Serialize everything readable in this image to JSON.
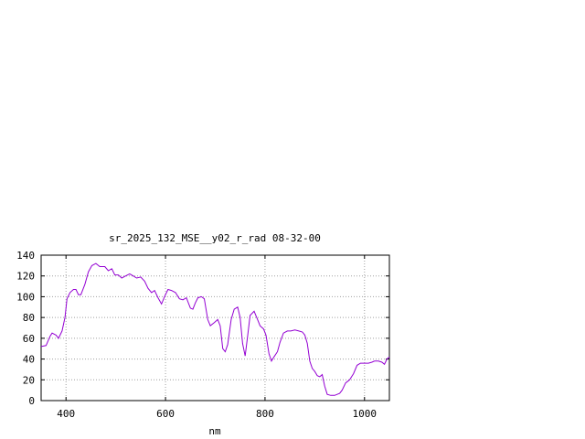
{
  "chart_data": {
    "type": "line",
    "title": "sr_2025_132_MSE__y02_r_rad 08-32-00",
    "xlabel": "nm",
    "ylabel": "",
    "xlim": [
      350,
      1050
    ],
    "ylim": [
      0,
      140
    ],
    "x_ticks": [
      400,
      600,
      800,
      1000
    ],
    "y_ticks": [
      0,
      20,
      40,
      60,
      80,
      100,
      120,
      140
    ],
    "grid": true,
    "legend": "none",
    "series": [
      {
        "color": "#9400d3",
        "points": [
          [
            350,
            52
          ],
          [
            360,
            53
          ],
          [
            368,
            62
          ],
          [
            372,
            65
          ],
          [
            380,
            63
          ],
          [
            385,
            60
          ],
          [
            392,
            67
          ],
          [
            398,
            80
          ],
          [
            402,
            98
          ],
          [
            408,
            104
          ],
          [
            415,
            107
          ],
          [
            420,
            107
          ],
          [
            425,
            102
          ],
          [
            430,
            102
          ],
          [
            438,
            112
          ],
          [
            445,
            124
          ],
          [
            452,
            130
          ],
          [
            460,
            132
          ],
          [
            468,
            129
          ],
          [
            478,
            129
          ],
          [
            485,
            125
          ],
          [
            492,
            127
          ],
          [
            498,
            121
          ],
          [
            505,
            121
          ],
          [
            512,
            118
          ],
          [
            520,
            120
          ],
          [
            528,
            122
          ],
          [
            535,
            120
          ],
          [
            542,
            118
          ],
          [
            550,
            119
          ],
          [
            558,
            115
          ],
          [
            565,
            108
          ],
          [
            572,
            104
          ],
          [
            578,
            106
          ],
          [
            585,
            99
          ],
          [
            592,
            93
          ],
          [
            598,
            100
          ],
          [
            605,
            107
          ],
          [
            612,
            106
          ],
          [
            620,
            104
          ],
          [
            628,
            98
          ],
          [
            635,
            97
          ],
          [
            642,
            99
          ],
          [
            650,
            89
          ],
          [
            655,
            88
          ],
          [
            660,
            94
          ],
          [
            665,
            99
          ],
          [
            672,
            100
          ],
          [
            678,
            98
          ],
          [
            685,
            78
          ],
          [
            690,
            72
          ],
          [
            698,
            75
          ],
          [
            705,
            78
          ],
          [
            710,
            72
          ],
          [
            715,
            50
          ],
          [
            720,
            47
          ],
          [
            725,
            54
          ],
          [
            732,
            78
          ],
          [
            738,
            88
          ],
          [
            745,
            90
          ],
          [
            750,
            80
          ],
          [
            755,
            55
          ],
          [
            760,
            43
          ],
          [
            765,
            62
          ],
          [
            770,
            82
          ],
          [
            778,
            86
          ],
          [
            785,
            78
          ],
          [
            790,
            72
          ],
          [
            797,
            69
          ],
          [
            802,
            63
          ],
          [
            808,
            45
          ],
          [
            813,
            38
          ],
          [
            818,
            42
          ],
          [
            825,
            47
          ],
          [
            830,
            56
          ],
          [
            837,
            65
          ],
          [
            845,
            67
          ],
          [
            852,
            67
          ],
          [
            860,
            68
          ],
          [
            868,
            67
          ],
          [
            875,
            66
          ],
          [
            880,
            63
          ],
          [
            885,
            55
          ],
          [
            890,
            38
          ],
          [
            895,
            31
          ],
          [
            900,
            28
          ],
          [
            905,
            24
          ],
          [
            910,
            23
          ],
          [
            915,
            25
          ],
          [
            920,
            14
          ],
          [
            925,
            6
          ],
          [
            932,
            5
          ],
          [
            940,
            5
          ],
          [
            950,
            7
          ],
          [
            955,
            10
          ],
          [
            962,
            17
          ],
          [
            970,
            20
          ],
          [
            978,
            26
          ],
          [
            985,
            34
          ],
          [
            992,
            36
          ],
          [
            1000,
            36
          ],
          [
            1008,
            36
          ],
          [
            1015,
            37
          ],
          [
            1020,
            38
          ],
          [
            1028,
            38
          ],
          [
            1035,
            37
          ],
          [
            1040,
            35
          ],
          [
            1045,
            40
          ],
          [
            1050,
            42
          ]
        ]
      }
    ]
  }
}
